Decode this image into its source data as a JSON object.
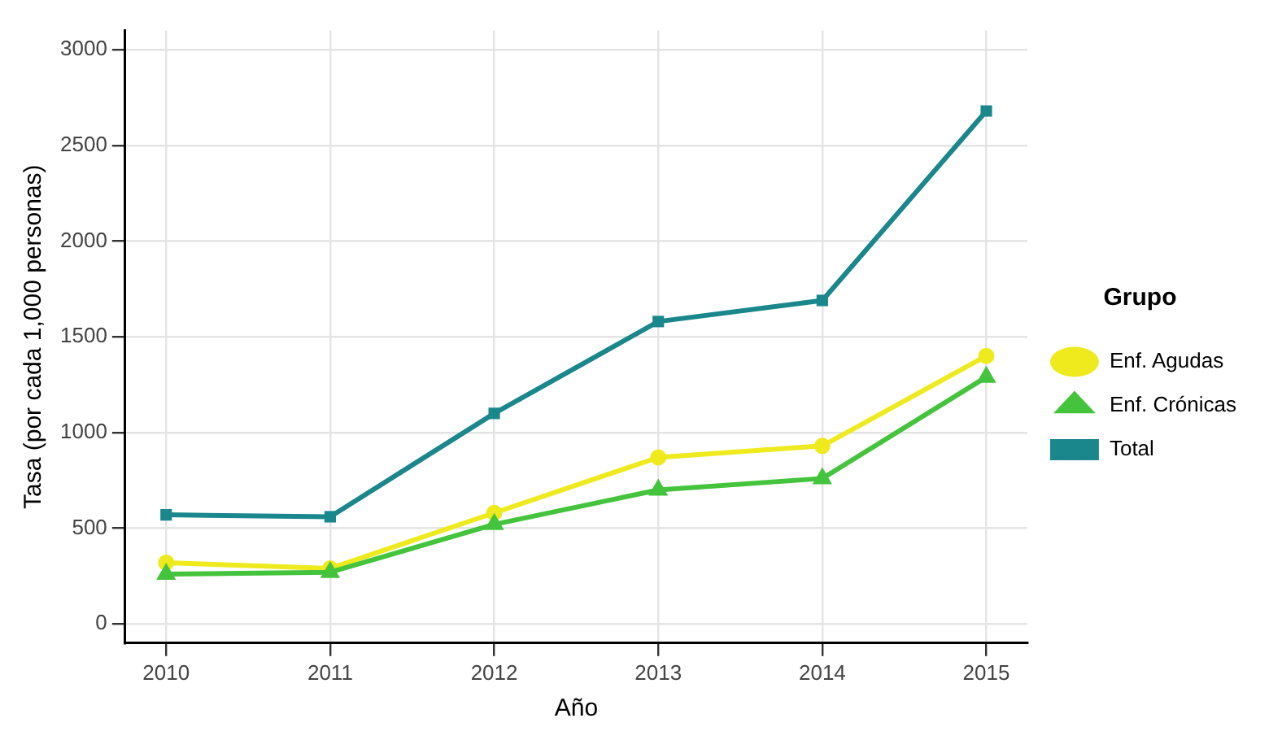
{
  "chart_data": {
    "type": "line",
    "xlabel": "Año",
    "ylabel": "Tasa (por cada 1,000 personas)",
    "legend_title": "Grupo",
    "legend": "right",
    "grid": true,
    "line_style": "solid",
    "x": [
      2010,
      2011,
      2012,
      2013,
      2014,
      2015
    ],
    "xlim": [
      2009.75,
      2015.25
    ],
    "xticks": [
      2010,
      2011,
      2012,
      2013,
      2014,
      2015
    ],
    "ylim": [
      -100,
      3100
    ],
    "yticks": [
      0,
      500,
      1000,
      1500,
      2000,
      2500,
      3000
    ],
    "series": [
      {
        "name": "Enf. Agudas",
        "color": "#eeea1e",
        "marker": "circle",
        "values": [
          320,
          290,
          580,
          870,
          930,
          1400
        ]
      },
      {
        "name": "Enf. Crónicas",
        "color": "#44c43c",
        "marker": "triangle",
        "values": [
          260,
          270,
          520,
          700,
          760,
          1290
        ]
      },
      {
        "name": "Total",
        "color": "#1a878c",
        "marker": "square",
        "values": [
          570,
          560,
          1100,
          1580,
          1690,
          2680
        ]
      }
    ]
  }
}
